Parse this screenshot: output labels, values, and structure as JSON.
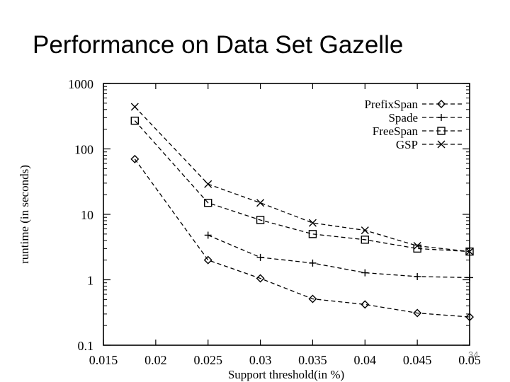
{
  "slide": {
    "title": "Performance on Data Set Gazelle",
    "page_number": "34"
  },
  "chart_data": {
    "type": "line",
    "title": "",
    "xlabel": "Support threshold(in %)",
    "ylabel": "runtime (in seconds)",
    "xlim": [
      0.015,
      0.05
    ],
    "ylim": [
      0.1,
      1000
    ],
    "yscale": "log",
    "xticks": [
      "0.015",
      "0.02",
      "0.025",
      "0.03",
      "0.035",
      "0.04",
      "0.045",
      "0.05"
    ],
    "yticks": [
      "0.1",
      "1",
      "10",
      "100",
      "1000"
    ],
    "grid": false,
    "legend_position": "top-right",
    "series": [
      {
        "name": "PrefixSpan",
        "marker": "diamond",
        "x": [
          0.018,
          0.025,
          0.03,
          0.035,
          0.04,
          0.045,
          0.05
        ],
        "values": [
          70,
          2.0,
          1.05,
          0.51,
          0.42,
          0.31,
          0.27
        ]
      },
      {
        "name": "Spade",
        "marker": "plus",
        "x": [
          0.025,
          0.03,
          0.035,
          0.04,
          0.045,
          0.05
        ],
        "values": [
          4.8,
          2.2,
          1.8,
          1.28,
          1.12,
          1.08
        ]
      },
      {
        "name": "FreeSpan",
        "marker": "square",
        "x": [
          0.018,
          0.025,
          0.03,
          0.035,
          0.04,
          0.045,
          0.05
        ],
        "values": [
          270,
          15,
          8.2,
          5.0,
          4.1,
          3.0,
          2.7
        ]
      },
      {
        "name": "GSP",
        "marker": "cross",
        "x": [
          0.018,
          0.025,
          0.03,
          0.035,
          0.04,
          0.045,
          0.05
        ],
        "values": [
          440,
          29,
          15,
          7.4,
          5.7,
          3.3,
          2.7
        ]
      }
    ]
  }
}
